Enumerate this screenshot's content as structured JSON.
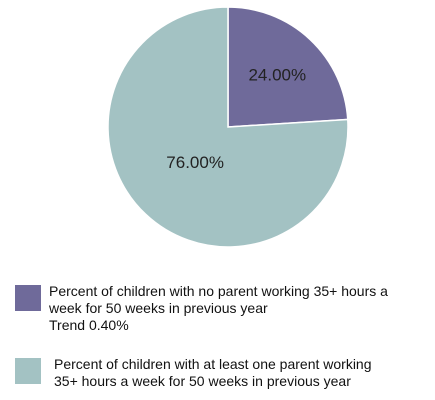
{
  "chart_data": {
    "type": "pie",
    "slices": [
      {
        "label": "Percent of children with no parent working 35+ hours a week for 50 weeks in previous year",
        "value": 24.0,
        "display": "24.00%",
        "color": "#6f6a9a"
      },
      {
        "label": "Percent of children with at least one parent working 35+ hours a week for 50 weeks in previous year",
        "value": 76.0,
        "display": "76.00%",
        "color": "#a3c2c3"
      }
    ]
  },
  "legend": [
    {
      "lines": [
        "Percent of children with no parent working 35+ hours a",
        "week for 50 weeks in previous year",
        "Trend 0.40%"
      ],
      "color": "#6f6a9a"
    },
    {
      "lines": [
        "Percent of children with at least one parent working",
        "35+ hours a week for 50 weeks in previous year"
      ],
      "color": "#a3c2c3"
    }
  ]
}
